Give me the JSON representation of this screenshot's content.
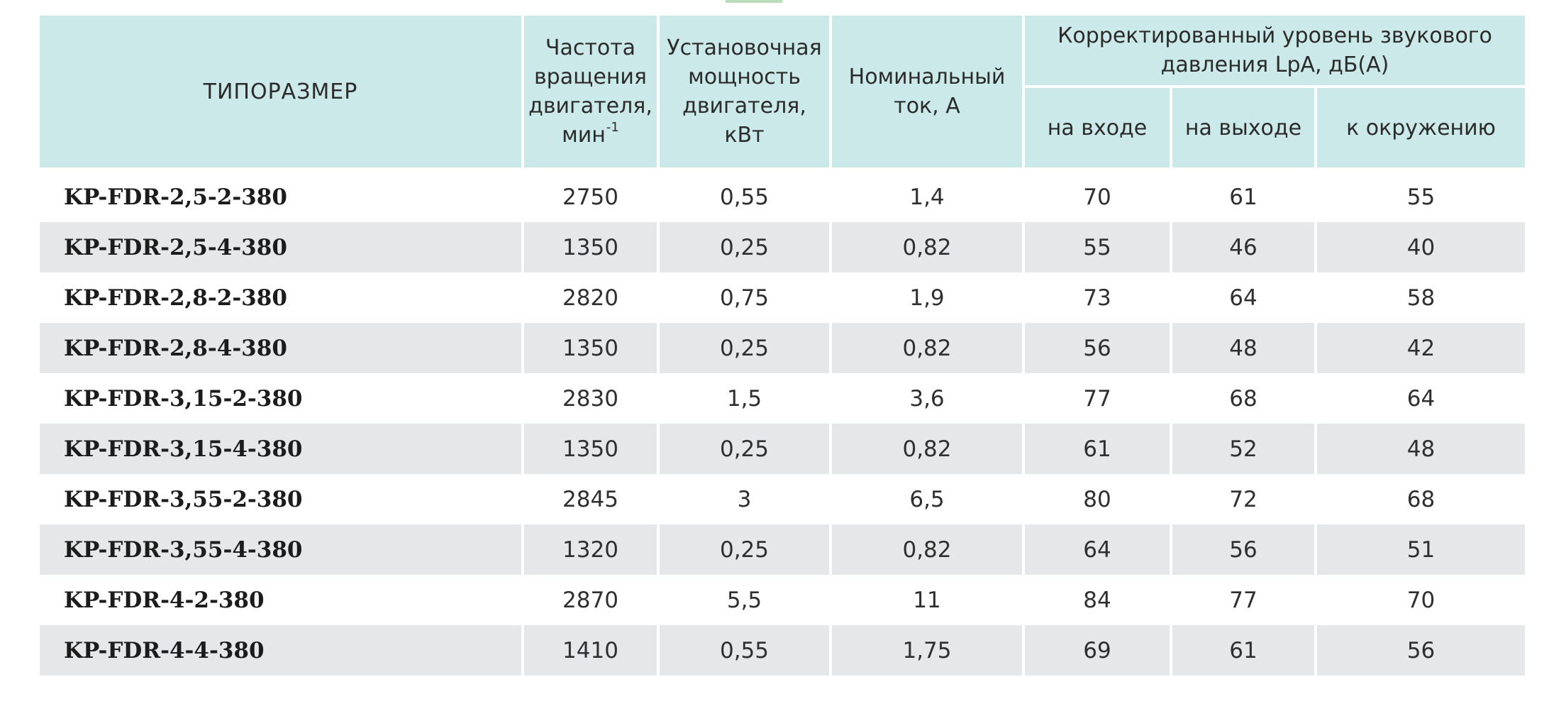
{
  "header": {
    "model": "ТИПОРАЗМЕР",
    "rpm_line1": "Частота",
    "rpm_line2": "вращения",
    "rpm_line3": "двигателя,",
    "rpm_line4": "мин",
    "rpm_exp": "-1",
    "power_line1": "Установочная",
    "power_line2": "мощность",
    "power_line3": "двигателя,",
    "power_line4": "кВт",
    "current_line1": "Номинальный",
    "current_line2": "ток, А",
    "sound_line1": "Корректированный уровень звукового",
    "sound_line2": "давления LpA, дБ(А)",
    "inlet": "на входе",
    "outlet": "на выходе",
    "surround": "к окружению"
  },
  "rows": [
    {
      "model": "KP-FDR-2,5-2-380",
      "rpm": "2750",
      "power": "0,55",
      "current": "1,4",
      "inlet": "70",
      "outlet": "61",
      "surround": "55"
    },
    {
      "model": "KP-FDR-2,5-4-380",
      "rpm": "1350",
      "power": "0,25",
      "current": "0,82",
      "inlet": "55",
      "outlet": "46",
      "surround": "40"
    },
    {
      "model": "KP-FDR-2,8-2-380",
      "rpm": "2820",
      "power": "0,75",
      "current": "1,9",
      "inlet": "73",
      "outlet": "64",
      "surround": "58"
    },
    {
      "model": "KP-FDR-2,8-4-380",
      "rpm": "1350",
      "power": "0,25",
      "current": "0,82",
      "inlet": "56",
      "outlet": "48",
      "surround": "42"
    },
    {
      "model": "KP-FDR-3,15-2-380",
      "rpm": "2830",
      "power": "1,5",
      "current": "3,6",
      "inlet": "77",
      "outlet": "68",
      "surround": "64"
    },
    {
      "model": "KP-FDR-3,15-4-380",
      "rpm": "1350",
      "power": "0,25",
      "current": "0,82",
      "inlet": "61",
      "outlet": "52",
      "surround": "48"
    },
    {
      "model": "KP-FDR-3,55-2-380",
      "rpm": "2845",
      "power": "3",
      "current": "6,5",
      "inlet": "80",
      "outlet": "72",
      "surround": "68"
    },
    {
      "model": "KP-FDR-3,55-4-380",
      "rpm": "1320",
      "power": "0,25",
      "current": "0,82",
      "inlet": "64",
      "outlet": "56",
      "surround": "51"
    },
    {
      "model": "KP-FDR-4-2-380",
      "rpm": "2870",
      "power": "5,5",
      "current": "11",
      "inlet": "84",
      "outlet": "77",
      "surround": "70"
    },
    {
      "model": "KP-FDR-4-4-380",
      "rpm": "1410",
      "power": "0,55",
      "current": "1,75",
      "inlet": "69",
      "outlet": "61",
      "surround": "56"
    }
  ]
}
